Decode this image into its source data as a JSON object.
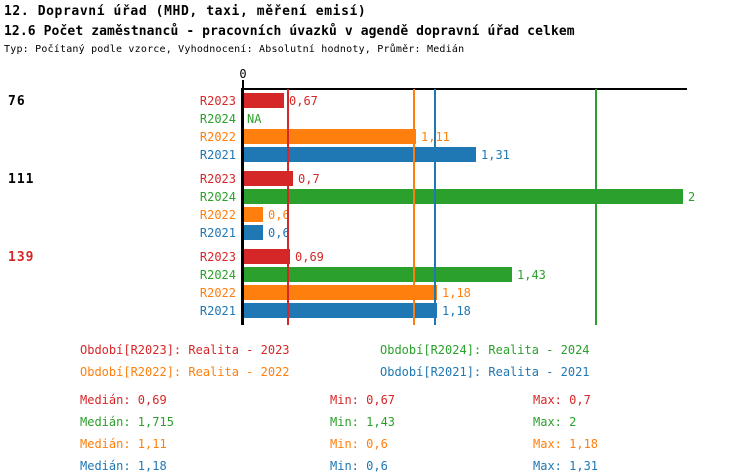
{
  "title": {
    "line1": "12. Dopravní úřad (MHD, taxi, měření emisí)",
    "line2": "12.6 Počet zaměstnanců - pracovních úvazků v agendě dopravní úřad celkem",
    "meta": "Typ: Počítaný podle vzorce, Vyhodnocení: Absolutní hodnoty, Průměr: Medián"
  },
  "colors": {
    "series": {
      "R2023": "#d62728",
      "R2024": "#2ca02c",
      "R2022": "#ff7f0e",
      "R2021": "#1f77b4"
    },
    "axis": "#000000",
    "group_label": "#000000",
    "highlight_group_label": "#d62728"
  },
  "chart_data": {
    "type": "bar",
    "orientation": "horizontal-grouped",
    "x_axis": {
      "tick_label": "0"
    },
    "series_order": [
      "R2023",
      "R2024",
      "R2022",
      "R2021"
    ],
    "groups": [
      {
        "label": "76",
        "highlight": false,
        "bars": [
          {
            "series": "R2023",
            "value": 0.67,
            "label": "0,67"
          },
          {
            "series": "R2024",
            "value": null,
            "label": "NA"
          },
          {
            "series": "R2022",
            "value": 1.11,
            "label": "1,11"
          },
          {
            "series": "R2021",
            "value": 1.31,
            "label": "1,31"
          }
        ]
      },
      {
        "label": "111",
        "highlight": false,
        "bars": [
          {
            "series": "R2023",
            "value": 0.7,
            "label": "0,7"
          },
          {
            "series": "R2024",
            "value": 2,
            "label": "2"
          },
          {
            "series": "R2022",
            "value": 0.6,
            "label": "0,6"
          },
          {
            "series": "R2021",
            "value": 0.6,
            "label": "0,6"
          }
        ]
      },
      {
        "label": "139",
        "highlight": true,
        "bars": [
          {
            "series": "R2023",
            "value": 0.69,
            "label": "0,69"
          },
          {
            "series": "R2024",
            "value": 1.43,
            "label": "1,43"
          },
          {
            "series": "R2022",
            "value": 1.18,
            "label": "1,18"
          },
          {
            "series": "R2021",
            "value": 1.18,
            "label": "1,18"
          }
        ]
      }
    ],
    "median_lines": [
      {
        "series": "R2023",
        "value": 0.69
      },
      {
        "series": "R2024",
        "value": 1.715
      },
      {
        "series": "R2022",
        "value": 1.11
      },
      {
        "series": "R2021",
        "value": 1.18
      }
    ]
  },
  "legend": [
    {
      "series": "R2023",
      "text": "Období[R2023]: Realita - 2023"
    },
    {
      "series": "R2024",
      "text": "Období[R2024]: Realita - 2024"
    },
    {
      "series": "R2022",
      "text": "Období[R2022]: Realita - 2022"
    },
    {
      "series": "R2021",
      "text": "Období[R2021]: Realita - 2021"
    }
  ],
  "stats": [
    {
      "series": "R2023",
      "median": "Medián: 0,69",
      "min": "Min: 0,67",
      "max": "Max: 0,7"
    },
    {
      "series": "R2024",
      "median": "Medián: 1,715",
      "min": "Min: 1,43",
      "max": "Max: 2"
    },
    {
      "series": "R2022",
      "median": "Medián: 1,11",
      "min": "Min: 0,6",
      "max": "Max: 1,18"
    },
    {
      "series": "R2021",
      "median": "Medián: 1,18",
      "min": "Min: 0,6",
      "max": "Max: 1,31"
    }
  ]
}
